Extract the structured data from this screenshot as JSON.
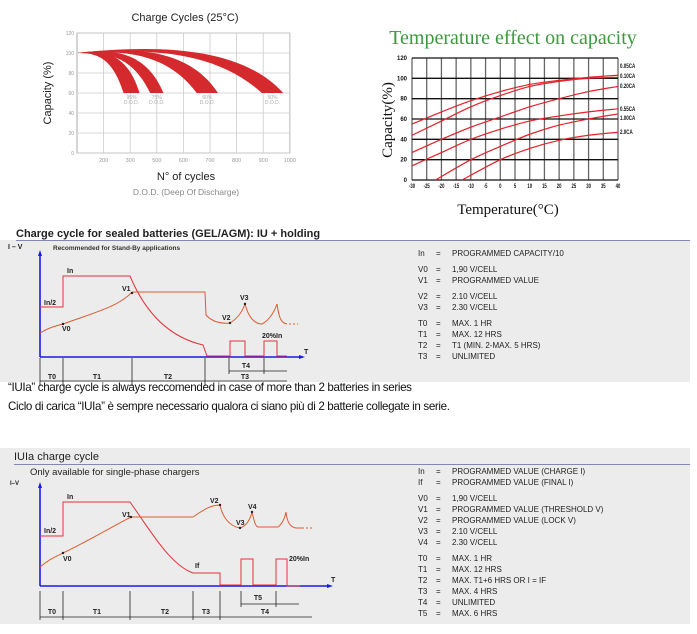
{
  "chart_data": [
    {
      "type": "area",
      "title": "Charge Cycles (25°C)",
      "xlabel": "N° of cycles",
      "xsublabel": "D.O.D. (Deep Of Discharge)",
      "ylabel": "Capacity (%)",
      "ylim": [
        0,
        120
      ],
      "y_ticks": [
        "0",
        "20",
        "40",
        "60",
        "80",
        "100",
        "120"
      ],
      "x_tick_values": [
        100,
        200,
        300,
        500,
        600,
        700,
        800,
        900,
        1000
      ],
      "x_tick_labels": [
        "200",
        "300",
        "500",
        "600",
        "700",
        "800",
        "900",
        "1000"
      ],
      "grid": true,
      "band_color": "#d42a2e",
      "series": [
        {
          "name": "95%",
          "sub": "D.O.D.",
          "start": [
            100,
            100
          ],
          "peak": 101,
          "end_cycles": [
            275,
            370
          ],
          "end_capacity": 60
        },
        {
          "name": "75%",
          "sub": "D.O.D.",
          "start": [
            100,
            100
          ],
          "peak": 102,
          "end_cycles": [
            450,
            525
          ],
          "end_capacity": 60
        },
        {
          "name": "60%",
          "sub": "D.O.D.",
          "start": [
            100,
            100
          ],
          "peak": 104,
          "end_cycles": [
            650,
            730
          ],
          "end_capacity": 60
        },
        {
          "name": "50%",
          "sub": "D.O.D.",
          "start": [
            100,
            100
          ],
          "peak": 106,
          "end_cycles": [
            895,
            975
          ],
          "end_capacity": 60
        }
      ]
    },
    {
      "type": "line",
      "title": "Temperature effect on capacity",
      "title_color": "#3c9a3c",
      "xlabel": "Temperature(°C)",
      "ylabel": "Capacity(%)",
      "xlim": [
        -30,
        40
      ],
      "ylim": [
        0,
        120
      ],
      "x_ticks": [
        "-30",
        "-25",
        "-20",
        "-15",
        "-10",
        "-5",
        "0",
        "5",
        "10",
        "15",
        "20",
        "25",
        "30",
        "35",
        "40"
      ],
      "y_ticks": [
        "0",
        "20",
        "40",
        "60",
        "80",
        "100",
        "120"
      ],
      "grid": true,
      "line_color": "#e8202a",
      "series": [
        {
          "name": "0.05CA",
          "x": [
            -30,
            -20,
            -10,
            0,
            10,
            20,
            30,
            40
          ],
          "y": [
            55,
            67,
            78,
            87,
            94,
            98,
            101,
            103
          ]
        },
        {
          "name": "0.10CA",
          "x": [
            -30,
            -20,
            -10,
            0,
            10,
            20,
            30,
            40
          ],
          "y": [
            44,
            58,
            72,
            83,
            92,
            97,
            100,
            101
          ]
        },
        {
          "name": "0.20CA",
          "x": [
            -30,
            -20,
            -10,
            0,
            10,
            20,
            30,
            40
          ],
          "y": [
            27,
            40,
            52,
            62,
            72,
            80,
            87,
            92
          ]
        },
        {
          "name": "0.55CA",
          "x": [
            -30,
            -20,
            -10,
            0,
            10,
            20,
            30,
            40
          ],
          "y": [
            14,
            27,
            40,
            50,
            58,
            63,
            67,
            70
          ]
        },
        {
          "name": "1.00CA",
          "x": [
            -22,
            -10,
            0,
            10,
            20,
            30,
            40
          ],
          "y": [
            0,
            20,
            33,
            45,
            54,
            60,
            65
          ]
        },
        {
          "name": "2.0CA",
          "x": [
            -13,
            0,
            10,
            20,
            30,
            40
          ],
          "y": [
            0,
            20,
            31,
            39,
            44,
            47
          ]
        }
      ]
    }
  ],
  "section1": {
    "title": "Charge cycle for sealed batteries (GEL/AGM): IU + holding",
    "subtitle": "Recommended for Stand-By applications",
    "axis_y": "I – V",
    "axis_x": "T",
    "labels": {
      "in": "In",
      "in_half": "In/2",
      "v0": "V0",
      "v1": "V1",
      "v2": "V2",
      "v3": "V3",
      "pct": "20%In"
    },
    "periods": {
      "t0": "T0",
      "t1": "T1",
      "t2": "T2",
      "t3": "T3",
      "t4": "T4"
    },
    "legend": [
      {
        "k": "In",
        "v": "PROGRAMMED CAPACITY/10"
      },
      {
        "k": "V0",
        "v": "1,90 V/CELL"
      },
      {
        "k": "V1",
        "v": "PROGRAMMED VALUE"
      },
      {
        "k": "V2",
        "v": "2.10 V/CELL"
      },
      {
        "k": "V3",
        "v": "2.30 V/CELL"
      },
      {
        "k": "T0",
        "v": "MAX. 1 HR"
      },
      {
        "k": "T1",
        "v": "MAX. 12 HRS"
      },
      {
        "k": "T2",
        "v": "T1 (MIN. 2-MAX. 5 HRS)"
      },
      {
        "k": "T3",
        "v": "UNLIMITED"
      }
    ]
  },
  "notes": {
    "en": "“IUIa” charge cycle is always reccomended in case of more than 2 batteries in series",
    "it": "Ciclo di carica “IUIa” è sempre necessario qualora ci siano più di 2 batterie collegate in serie."
  },
  "section2": {
    "title": "IUIa charge cycle",
    "subtitle": "Only available for single-phase chargers",
    "axis_y": "I–V",
    "axis_x": "T",
    "labels": {
      "in": "In",
      "in_half": "In/2",
      "v0": "V0",
      "v1": "V1",
      "v2": "V2",
      "v3": "V3",
      "v4": "V4",
      "if": "If",
      "pct": "20%In"
    },
    "periods": {
      "t0": "T0",
      "t1": "T1",
      "t2": "T2",
      "t3": "T3",
      "t4": "T4",
      "t5": "T5"
    },
    "legend": [
      {
        "k": "In",
        "v": "PROGRAMMED VALUE (CHARGE I)"
      },
      {
        "k": "If",
        "v": "PROGRAMMED VALUE (FINAL I)"
      },
      {
        "k": "V0",
        "v": "1,90 V/CELL"
      },
      {
        "k": "V1",
        "v": "PROGRAMMED VALUE (THRESHOLD V)"
      },
      {
        "k": "V2",
        "v": "PROGRAMMED VALUE (LOCK V)"
      },
      {
        "k": "V3",
        "v": "2.10 V/CELL"
      },
      {
        "k": "V4",
        "v": "2.30 V/CELL"
      },
      {
        "k": "T0",
        "v": "MAX. 1 HR"
      },
      {
        "k": "T1",
        "v": "MAX. 12 HRS"
      },
      {
        "k": "T2",
        "v": "MAX. T1+6 HRS OR I = IF"
      },
      {
        "k": "T3",
        "v": "MAX. 4 HRS"
      },
      {
        "k": "T4",
        "v": "UNLIMITED"
      },
      {
        "k": "T5",
        "v": "MAX. 6 HRS"
      }
    ]
  }
}
